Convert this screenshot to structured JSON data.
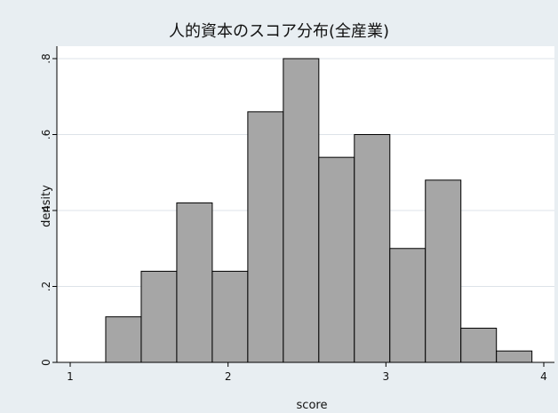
{
  "chart_data": {
    "type": "histogram",
    "title": "人的資本のスコア分布(全産業)",
    "xlabel": "score",
    "ylabel": "density",
    "xlim": [
      1,
      4
    ],
    "ylim": [
      0,
      0.8
    ],
    "x_ticks": [
      "1",
      "2",
      "3",
      "4"
    ],
    "y_ticks": [
      "0",
      ".2",
      ".4",
      ".6",
      ".8"
    ],
    "grid": true,
    "bins": [
      {
        "start": 1.225,
        "end": 1.45,
        "value": 0.12
      },
      {
        "start": 1.45,
        "end": 1.675,
        "value": 0.24
      },
      {
        "start": 1.675,
        "end": 1.9,
        "value": 0.42
      },
      {
        "start": 1.9,
        "end": 2.125,
        "value": 0.24
      },
      {
        "start": 2.125,
        "end": 2.35,
        "value": 0.66
      },
      {
        "start": 2.35,
        "end": 2.575,
        "value": 0.8
      },
      {
        "start": 2.575,
        "end": 2.8,
        "value": 0.54
      },
      {
        "start": 2.8,
        "end": 3.025,
        "value": 0.6
      },
      {
        "start": 3.025,
        "end": 3.25,
        "value": 0.3
      },
      {
        "start": 3.25,
        "end": 3.475,
        "value": 0.48
      },
      {
        "start": 3.475,
        "end": 3.7,
        "value": 0.09
      },
      {
        "start": 3.7,
        "end": 3.925,
        "value": 0.03
      }
    ],
    "colors": {
      "background": "#e8eef2",
      "plot_background": "#ffffff",
      "bar_fill": "#a6a6a6",
      "bar_stroke": "#000000",
      "grid": "#dde3e8"
    }
  }
}
